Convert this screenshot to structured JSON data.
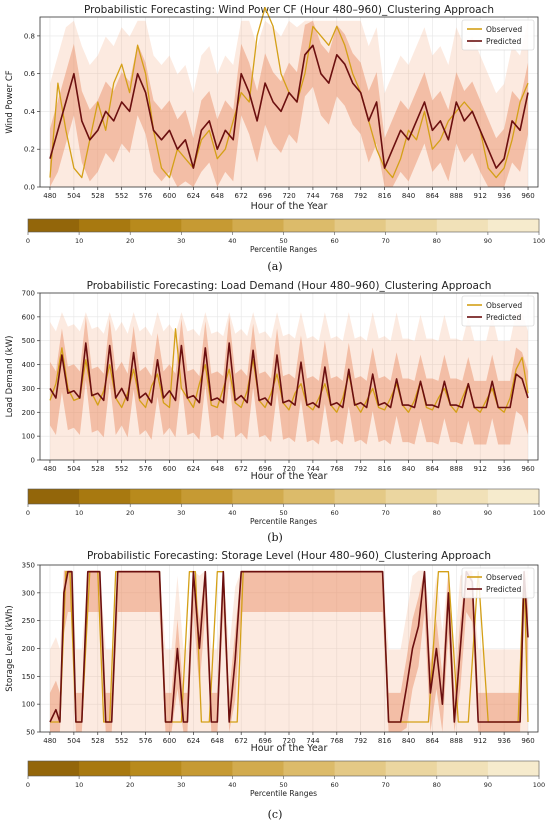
{
  "panel_labels": [
    "(a)",
    "(b)",
    "(c)"
  ],
  "colorbar": {
    "label": "Percentile Ranges",
    "ticks": [
      "0",
      "10",
      "20",
      "30",
      "40",
      "50",
      "60",
      "70",
      "80",
      "90",
      "100"
    ],
    "colors": [
      "#93660a",
      "#a87910",
      "#b88a1c",
      "#c69a33",
      "#d2ab4e",
      "#dcbb6a",
      "#e4c986",
      "#ebd6a0",
      "#f1e1b8",
      "#f6ebcd"
    ]
  },
  "colors": {
    "observed": "#d4a017",
    "predicted": "#6b0f0f",
    "band": "#f0a070",
    "core": "#e88a60"
  },
  "chart_data": [
    {
      "type": "line",
      "title": "Probabilistic Forecasting: Wind Power CF (Hour 480–960)_Clustering Approach",
      "xlabel": "Hour of the Year",
      "ylabel": "Wind Power CF",
      "xlim": [
        470,
        970
      ],
      "ylim": [
        0,
        0.9
      ],
      "xticks": [
        480,
        504,
        528,
        552,
        576,
        600,
        624,
        648,
        672,
        696,
        720,
        744,
        768,
        792,
        816,
        840,
        864,
        888,
        912,
        936,
        960
      ],
      "yticks": [
        0.0,
        0.2,
        0.4,
        0.6,
        0.8
      ],
      "yticklabels": [
        "0.0",
        "0.2",
        "0.4",
        "0.6",
        "0.8"
      ],
      "legend": "top-right",
      "band_upper": 0.88,
      "series": [
        {
          "name": "Observed",
          "x": [
            480,
            488,
            496,
            504,
            512,
            520,
            528,
            536,
            544,
            552,
            560,
            568,
            576,
            584,
            592,
            600,
            608,
            616,
            624,
            632,
            640,
            648,
            656,
            664,
            672,
            680,
            688,
            696,
            704,
            712,
            720,
            728,
            736,
            744,
            752,
            760,
            768,
            776,
            784,
            792,
            800,
            808,
            816,
            824,
            832,
            840,
            848,
            856,
            864,
            872,
            880,
            888,
            896,
            904,
            912,
            920,
            928,
            936,
            944,
            952,
            960
          ],
          "y": [
            0.05,
            0.55,
            0.3,
            0.1,
            0.05,
            0.25,
            0.45,
            0.3,
            0.55,
            0.65,
            0.5,
            0.75,
            0.6,
            0.3,
            0.1,
            0.05,
            0.2,
            0.15,
            0.1,
            0.25,
            0.3,
            0.15,
            0.2,
            0.35,
            0.5,
            0.45,
            0.8,
            0.95,
            0.85,
            0.6,
            0.5,
            0.45,
            0.6,
            0.85,
            0.8,
            0.75,
            0.85,
            0.75,
            0.6,
            0.5,
            0.35,
            0.2,
            0.1,
            0.05,
            0.15,
            0.3,
            0.25,
            0.4,
            0.2,
            0.25,
            0.35,
            0.4,
            0.45,
            0.4,
            0.3,
            0.1,
            0.05,
            0.1,
            0.25,
            0.45,
            0.55
          ]
        },
        {
          "name": "Predicted",
          "x": [
            480,
            488,
            496,
            504,
            512,
            520,
            528,
            536,
            544,
            552,
            560,
            568,
            576,
            584,
            592,
            600,
            608,
            616,
            624,
            632,
            640,
            648,
            656,
            664,
            672,
            680,
            688,
            696,
            704,
            712,
            720,
            728,
            736,
            744,
            752,
            760,
            768,
            776,
            784,
            792,
            800,
            808,
            816,
            824,
            832,
            840,
            848,
            856,
            864,
            872,
            880,
            888,
            896,
            904,
            912,
            920,
            928,
            936,
            944,
            952,
            960
          ],
          "y": [
            0.15,
            0.3,
            0.45,
            0.6,
            0.35,
            0.25,
            0.3,
            0.4,
            0.35,
            0.45,
            0.4,
            0.6,
            0.5,
            0.3,
            0.25,
            0.3,
            0.2,
            0.25,
            0.1,
            0.3,
            0.35,
            0.2,
            0.3,
            0.25,
            0.6,
            0.5,
            0.35,
            0.55,
            0.45,
            0.4,
            0.5,
            0.45,
            0.7,
            0.75,
            0.6,
            0.55,
            0.7,
            0.65,
            0.55,
            0.5,
            0.35,
            0.45,
            0.1,
            0.2,
            0.3,
            0.25,
            0.35,
            0.45,
            0.3,
            0.35,
            0.25,
            0.45,
            0.35,
            0.4,
            0.3,
            0.2,
            0.1,
            0.15,
            0.35,
            0.3,
            0.5
          ]
        }
      ]
    },
    {
      "type": "line",
      "title": "Probabilistic Forecasting: Load Demand (Hour 480–960)_Clustering Approach",
      "xlabel": "Hour of the Year",
      "ylabel": "Load Demand (kW)",
      "xlim": [
        470,
        970
      ],
      "ylim": [
        0,
        700
      ],
      "xticks": [
        480,
        504,
        528,
        552,
        576,
        600,
        624,
        648,
        672,
        696,
        720,
        744,
        768,
        792,
        816,
        840,
        864,
        888,
        912,
        936,
        960
      ],
      "yticks": [
        0,
        100,
        200,
        300,
        400,
        500,
        600,
        700
      ],
      "yticklabels": [
        "0",
        "100",
        "200",
        "300",
        "400",
        "500",
        "600",
        "700"
      ],
      "legend": "top-right",
      "band_upper": 620,
      "series": [
        {
          "name": "Observed",
          "x": [
            480,
            486,
            492,
            498,
            504,
            510,
            516,
            522,
            528,
            534,
            540,
            546,
            552,
            558,
            564,
            570,
            576,
            582,
            588,
            594,
            600,
            606,
            612,
            618,
            624,
            630,
            636,
            642,
            648,
            654,
            660,
            666,
            672,
            678,
            684,
            690,
            696,
            702,
            708,
            714,
            720,
            726,
            732,
            738,
            744,
            750,
            756,
            762,
            768,
            774,
            780,
            786,
            792,
            798,
            804,
            810,
            816,
            822,
            828,
            834,
            840,
            846,
            852,
            858,
            864,
            870,
            876,
            882,
            888,
            894,
            900,
            906,
            912,
            918,
            924,
            930,
            936,
            942,
            948,
            954,
            960
          ],
          "y": [
            250,
            320,
            470,
            300,
            250,
            260,
            420,
            280,
            230,
            290,
            400,
            260,
            220,
            280,
            380,
            250,
            220,
            310,
            360,
            240,
            220,
            550,
            300,
            260,
            220,
            320,
            400,
            230,
            220,
            300,
            380,
            240,
            220,
            290,
            420,
            250,
            220,
            280,
            360,
            240,
            210,
            280,
            320,
            230,
            210,
            260,
            320,
            230,
            200,
            260,
            360,
            240,
            200,
            250,
            300,
            220,
            210,
            260,
            320,
            230,
            200,
            250,
            330,
            220,
            210,
            260,
            300,
            230,
            200,
            260,
            320,
            220,
            200,
            250,
            300,
            220,
            200,
            260,
            380,
            430,
            280
          ]
        },
        {
          "name": "Predicted",
          "x": [
            480,
            486,
            492,
            498,
            504,
            510,
            516,
            522,
            528,
            534,
            540,
            546,
            552,
            558,
            564,
            570,
            576,
            582,
            588,
            594,
            600,
            606,
            612,
            618,
            624,
            630,
            636,
            642,
            648,
            654,
            660,
            666,
            672,
            678,
            684,
            690,
            696,
            702,
            708,
            714,
            720,
            726,
            732,
            738,
            744,
            750,
            756,
            762,
            768,
            774,
            780,
            786,
            792,
            798,
            804,
            810,
            816,
            822,
            828,
            834,
            840,
            846,
            852,
            858,
            864,
            870,
            876,
            882,
            888,
            894,
            900,
            906,
            912,
            918,
            924,
            930,
            936,
            942,
            948,
            954,
            960
          ],
          "y": [
            300,
            260,
            440,
            280,
            290,
            260,
            490,
            270,
            280,
            250,
            480,
            260,
            300,
            250,
            450,
            260,
            280,
            240,
            420,
            260,
            290,
            250,
            480,
            260,
            270,
            240,
            470,
            250,
            260,
            240,
            490,
            250,
            270,
            240,
            460,
            250,
            260,
            230,
            440,
            240,
            250,
            230,
            410,
            230,
            240,
            220,
            390,
            230,
            240,
            220,
            380,
            230,
            240,
            220,
            360,
            230,
            240,
            220,
            340,
            230,
            230,
            220,
            330,
            230,
            230,
            220,
            330,
            230,
            230,
            220,
            320,
            220,
            220,
            220,
            330,
            220,
            220,
            220,
            360,
            340,
            260
          ]
        }
      ]
    },
    {
      "type": "line",
      "title": "Probabilistic Forecasting: Storage Level (Hour 480–960)_Clustering Approach",
      "xlabel": "Hour of the Year",
      "ylabel": "Storage Level (kWh)",
      "xlim": [
        470,
        970
      ],
      "ylim": [
        50,
        350
      ],
      "xticks": [
        480,
        504,
        528,
        552,
        576,
        600,
        624,
        648,
        672,
        696,
        720,
        744,
        768,
        792,
        816,
        840,
        864,
        888,
        912,
        936,
        960
      ],
      "yticks": [
        50,
        100,
        150,
        200,
        250,
        300,
        350
      ],
      "yticklabels": [
        "50",
        "100",
        "150",
        "200",
        "250",
        "300",
        "350"
      ],
      "legend": "top-right",
      "band_upper": 340,
      "series": [
        {
          "name": "Observed",
          "x": [
            480,
            490,
            496,
            500,
            506,
            512,
            520,
            528,
            534,
            540,
            546,
            552,
            556,
            562,
            570,
            580,
            590,
            596,
            604,
            612,
            620,
            626,
            632,
            640,
            648,
            654,
            660,
            668,
            674,
            680,
            690,
            700,
            710,
            720,
            740,
            760,
            780,
            800,
            806,
            814,
            820,
            830,
            840,
            850,
            860,
            870,
            880,
            890,
            900,
            910,
            920,
            930,
            940,
            950,
            956,
            960
          ],
          "y": [
            68,
            68,
            338,
            338,
            68,
            68,
            338,
            338,
            68,
            68,
            338,
            338,
            338,
            338,
            338,
            338,
            338,
            68,
            68,
            68,
            338,
            338,
            68,
            68,
            338,
            338,
            68,
            68,
            338,
            338,
            338,
            338,
            338,
            338,
            338,
            338,
            338,
            338,
            338,
            338,
            68,
            68,
            68,
            68,
            68,
            338,
            338,
            68,
            68,
            338,
            68,
            68,
            68,
            68,
            338,
            68
          ]
        },
        {
          "name": "Predicted",
          "x": [
            480,
            486,
            490,
            494,
            498,
            502,
            506,
            512,
            518,
            524,
            530,
            536,
            542,
            548,
            552,
            560,
            570,
            580,
            590,
            596,
            602,
            608,
            614,
            618,
            624,
            630,
            636,
            642,
            648,
            654,
            660,
            666,
            672,
            680,
            690,
            700,
            710,
            720,
            740,
            760,
            780,
            800,
            808,
            814,
            820,
            826,
            832,
            838,
            844,
            850,
            856,
            862,
            868,
            874,
            880,
            886,
            892,
            898,
            904,
            910,
            916,
            922,
            928,
            934,
            940,
            946,
            952,
            956,
            960
          ],
          "y": [
            68,
            90,
            68,
            300,
            338,
            338,
            68,
            68,
            338,
            338,
            338,
            68,
            68,
            338,
            338,
            338,
            338,
            338,
            338,
            68,
            68,
            200,
            68,
            68,
            338,
            200,
            338,
            68,
            68,
            338,
            68,
            180,
            338,
            338,
            338,
            338,
            338,
            338,
            338,
            338,
            338,
            338,
            338,
            338,
            68,
            68,
            68,
            130,
            200,
            240,
            338,
            120,
            200,
            100,
            300,
            68,
            200,
            338,
            320,
            68,
            68,
            68,
            68,
            68,
            68,
            68,
            68,
            338,
            220
          ]
        }
      ]
    }
  ]
}
